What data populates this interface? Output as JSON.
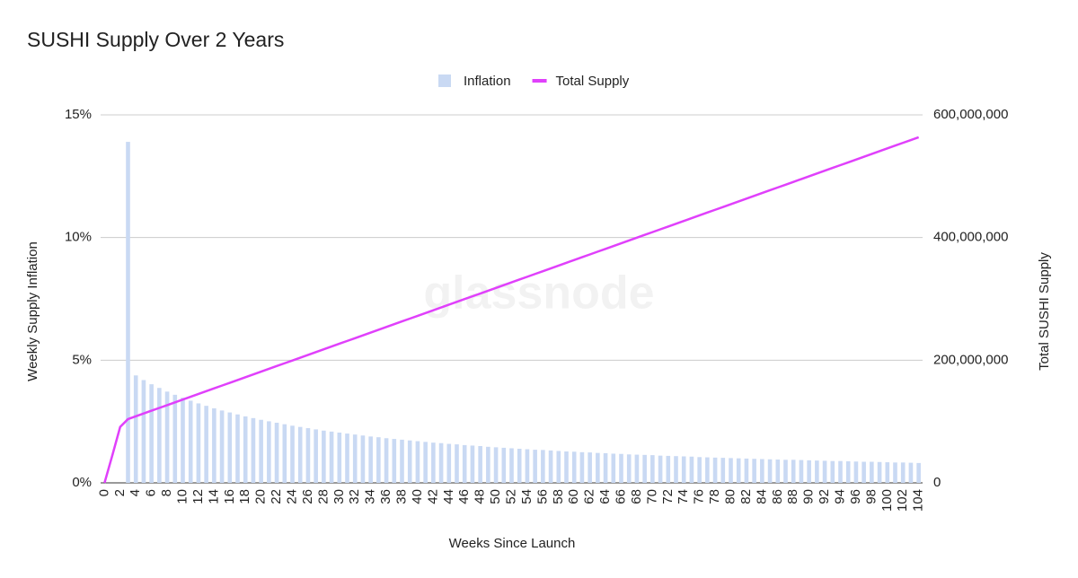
{
  "chart_data": {
    "type": "bar",
    "title": "SUSHI Supply Over 2 Years",
    "xlabel": "Weeks Since Launch",
    "ylabel": "Weekly Supply Inflation",
    "y2label": "Total SUSHI Supply",
    "watermark": "glassnode",
    "legend": "top",
    "grid": true,
    "categories": [
      0,
      null,
      2,
      null,
      4,
      null,
      6,
      null,
      8,
      null,
      10,
      null,
      12,
      null,
      14,
      null,
      16,
      null,
      18,
      null,
      20,
      null,
      22,
      null,
      24,
      null,
      26,
      null,
      28,
      null,
      30,
      null,
      32,
      null,
      34,
      null,
      36,
      null,
      38,
      null,
      40,
      null,
      42,
      null,
      44,
      null,
      46,
      null,
      48,
      null,
      50,
      null,
      52,
      null,
      54,
      null,
      56,
      null,
      58,
      null,
      60,
      null,
      62,
      null,
      64,
      null,
      66,
      null,
      68,
      null,
      70,
      null,
      72,
      null,
      74,
      null,
      76,
      null,
      78,
      null,
      80,
      null,
      82,
      null,
      84,
      null,
      86,
      null,
      88,
      null,
      90,
      null,
      92,
      null,
      94,
      null,
      96,
      null,
      98,
      null,
      100,
      null,
      102,
      null,
      104
    ],
    "ylim": [
      0,
      15
    ],
    "yticks": [
      {
        "value": 0,
        "label": "0%"
      },
      {
        "value": 5,
        "label": "5%"
      },
      {
        "value": 10,
        "label": "10%"
      },
      {
        "value": 15,
        "label": "15%"
      }
    ],
    "y2lim": [
      0,
      600000000
    ],
    "y2ticks": [
      0,
      {
        "value": 200000000,
        "label": "200,000,000"
      },
      {
        "value": 400000000,
        "label": "400,000,000"
      },
      {
        "value": 600000000,
        "label": "600,000,000"
      }
    ],
    "series": [
      {
        "name": "Inflation",
        "type": "bar",
        "axis": "y",
        "color": "#c9d9f3",
        "values": [
          null,
          null,
          null,
          13.9,
          4.38,
          4.19,
          4.02,
          3.87,
          3.72,
          3.59,
          3.47,
          3.35,
          3.24,
          3.14,
          3.04,
          2.95,
          2.87,
          2.79,
          2.71,
          2.64,
          2.57,
          2.51,
          2.45,
          2.39,
          2.33,
          2.28,
          2.23,
          2.18,
          2.13,
          2.09,
          2.05,
          2.01,
          1.97,
          1.93,
          1.89,
          1.86,
          1.82,
          1.79,
          1.76,
          1.73,
          1.7,
          1.67,
          1.64,
          1.62,
          1.59,
          1.57,
          1.54,
          1.52,
          1.5,
          1.47,
          1.45,
          1.43,
          1.41,
          1.39,
          1.37,
          1.35,
          1.34,
          1.32,
          1.3,
          1.28,
          1.27,
          1.25,
          1.24,
          1.22,
          1.21,
          1.19,
          1.18,
          1.16,
          1.15,
          1.14,
          1.13,
          1.11,
          1.1,
          1.09,
          1.08,
          1.07,
          1.05,
          1.04,
          1.03,
          1.02,
          1.01,
          1.0,
          0.99,
          0.98,
          0.97,
          0.96,
          0.95,
          0.94,
          0.94,
          0.93,
          0.92,
          0.91,
          0.9,
          0.89,
          0.89,
          0.88,
          0.87,
          0.86,
          0.86,
          0.85,
          0.84,
          0.83,
          0.83,
          0.82,
          0.81
        ]
      },
      {
        "name": "Total Supply",
        "type": "line",
        "axis": "y2",
        "color": "#e040fb",
        "values": [
          0,
          45000000,
          91300000,
          104000000,
          108550000,
          113100000,
          117650000,
          122200000,
          126750000,
          131300000,
          135850000,
          140400000,
          144950000,
          149500000,
          154050000,
          158600000,
          163150000,
          167700000,
          172250000,
          176800000,
          181350000,
          185900000,
          190450000,
          195000000,
          199550000,
          204100000,
          208650000,
          213200000,
          217750000,
          222300000,
          226850000,
          231400000,
          235950000,
          240500000,
          245050000,
          249600000,
          254150000,
          258700000,
          263250000,
          267800000,
          272350000,
          276900000,
          281450000,
          286000000,
          290550000,
          295100000,
          299650000,
          304200000,
          308750000,
          313300000,
          317850000,
          322400000,
          326950000,
          331500000,
          336050000,
          340600000,
          345150000,
          349700000,
          354250000,
          358800000,
          363350000,
          367900000,
          372450000,
          377000000,
          381550000,
          386100000,
          390650000,
          395200000,
          399750000,
          404300000,
          408850000,
          413400000,
          417950000,
          422500000,
          427050000,
          431600000,
          436150000,
          440700000,
          445250000,
          449800000,
          454350000,
          458900000,
          463450000,
          468000000,
          472550000,
          477100000,
          481650000,
          486200000,
          490750000,
          495300000,
          499850000,
          504400000,
          508950000,
          513500000,
          518050000,
          522600000,
          527150000,
          531700000,
          536250000,
          540800000,
          545350000,
          549900000,
          554450000,
          559000000,
          563550000
        ]
      }
    ]
  }
}
